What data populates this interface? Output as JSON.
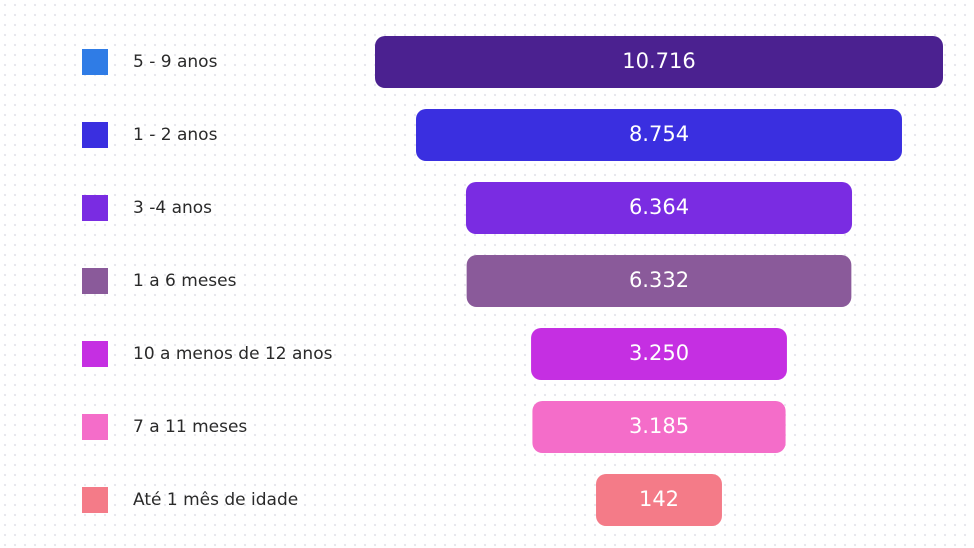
{
  "chart_data": {
    "type": "funnel",
    "categories": [
      "5 - 9 anos",
      "1 - 2 anos",
      "3 -4 anos",
      "1 a 6 meses",
      "10 a menos de 12 anos",
      "7 a 11 meses",
      "Até 1 mês de idade"
    ],
    "values": [
      10716,
      8754,
      6364,
      6332,
      3250,
      3185,
      142
    ],
    "value_labels": [
      "10.716",
      "8.754",
      "6.364",
      "6.332",
      "3.250",
      "3.185",
      "142"
    ],
    "colors": [
      "#4b2190",
      "#3a2fe0",
      "#7a2ce2",
      "#8a5a9a",
      "#c52fe2",
      "#f46dc9",
      "#f47b88"
    ],
    "legend_colors": [
      "#2f7ce6",
      "#3a2fe0",
      "#7a2ce2",
      "#8a5a9a",
      "#c52fe2",
      "#f46dc9",
      "#f47b88"
    ]
  }
}
